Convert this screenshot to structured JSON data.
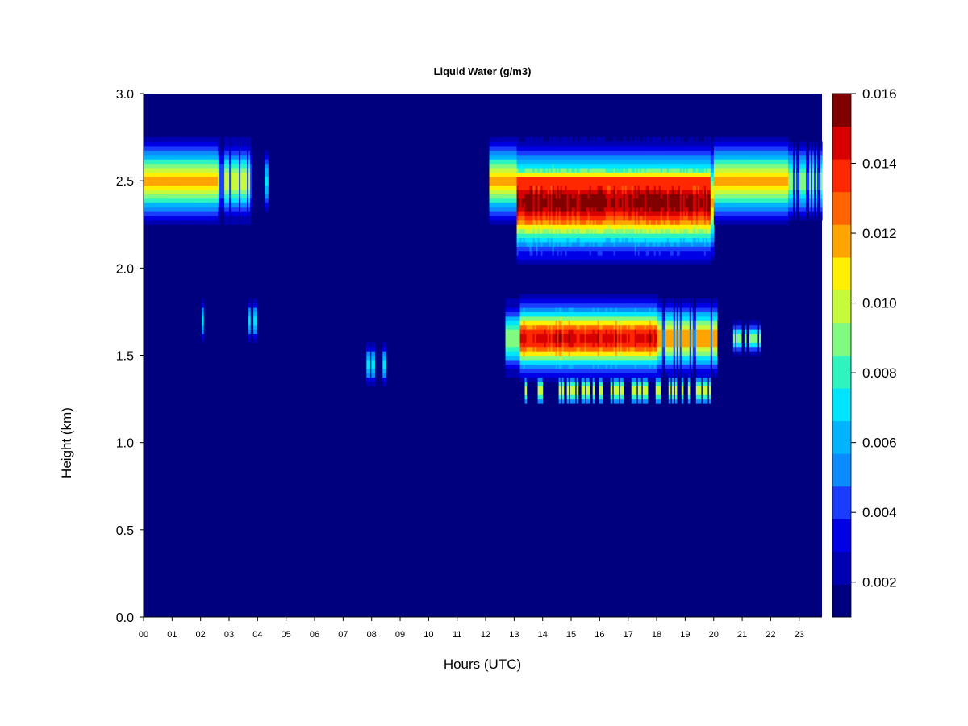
{
  "chart_data": {
    "type": "heatmap",
    "title": "Liquid Water (g/m3)",
    "xlabel": "Hours (UTC)",
    "ylabel": "Height (km)",
    "x_ticks": [
      "00",
      "01",
      "02",
      "03",
      "04",
      "05",
      "06",
      "07",
      "08",
      "09",
      "10",
      "11",
      "12",
      "13",
      "14",
      "15",
      "16",
      "17",
      "18",
      "19",
      "20",
      "21",
      "22",
      "23"
    ],
    "xlim": [
      0,
      23.8
    ],
    "ylim": [
      0,
      3.0
    ],
    "y_ticks": [
      "0.0",
      "0.5",
      "1.0",
      "1.5",
      "2.0",
      "2.5",
      "3.0"
    ],
    "y_tick_values": [
      0.0,
      0.5,
      1.0,
      1.5,
      2.0,
      2.5,
      3.0
    ],
    "colorbar": {
      "min": 0.001,
      "max": 0.016,
      "levels": 15,
      "tick_labels": [
        "0.002",
        "0.004",
        "0.006",
        "0.008",
        "0.010",
        "0.012",
        "0.014",
        "0.016"
      ],
      "tick_values": [
        0.002,
        0.004,
        0.006,
        0.008,
        0.01,
        0.012,
        0.014,
        0.016
      ],
      "colors": [
        "#00007F",
        "#0000B3",
        "#0000E6",
        "#1A3CFF",
        "#0A8CFF",
        "#00B4FF",
        "#00E5FF",
        "#2EF5C0",
        "#80FA80",
        "#C8FA3C",
        "#FFF000",
        "#FFA500",
        "#FF6400",
        "#FF2800",
        "#D70000",
        "#800000"
      ]
    },
    "background_value": 0.001,
    "cloud_layers": [
      {
        "label": "upper layer early",
        "x": [
          0.0,
          3.8
        ],
        "height_center_km": 2.5,
        "peak_value": 0.011
      },
      {
        "label": "upper layer afternoon",
        "x": [
          12.1,
          23.8
        ],
        "height_center_km": 2.45,
        "peak_value": 0.015
      },
      {
        "label": "lower layer afternoon",
        "x": [
          12.7,
          20.1
        ],
        "height_center_km": 1.6,
        "peak_value": 0.014
      },
      {
        "label": "lower patches evening",
        "x": [
          20.7,
          21.7
        ],
        "height_center_km": 1.6,
        "peak_value": 0.009
      }
    ]
  }
}
